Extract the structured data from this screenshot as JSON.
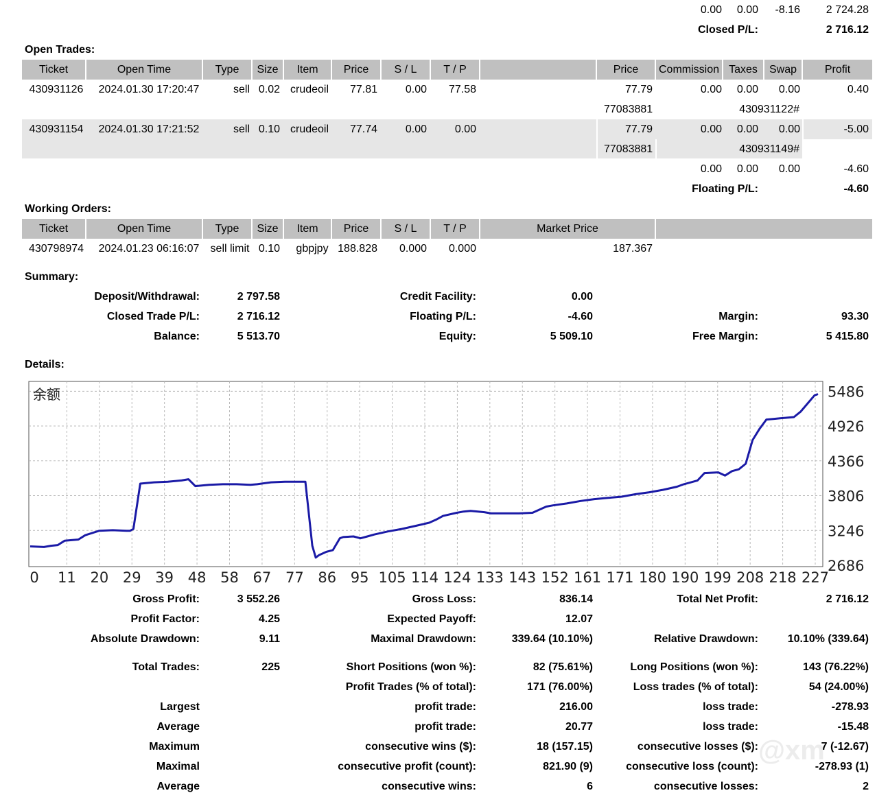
{
  "top_totals": {
    "row1": [
      "0.00",
      "0.00",
      "-8.16",
      "2 724.28"
    ],
    "closed_label": "Closed P/L:",
    "closed_value": "2 716.12"
  },
  "open_trades": {
    "title": "Open Trades:",
    "headers": [
      "Ticket",
      "Open Time",
      "Type",
      "Size",
      "Item",
      "Price",
      "S / L",
      "T / P",
      "",
      "Price",
      "Commission",
      "Taxes",
      "Swap",
      "Profit"
    ],
    "rows": [
      {
        "ticket": "430931126",
        "time": "2024.01.30 17:20:47",
        "type": "sell",
        "size": "0.02",
        "item": "crudeoil",
        "price": "77.81",
        "sl": "0.00",
        "tp": "77.58",
        "price2": "77.79",
        "commission": "0.00",
        "taxes": "0.00",
        "swap": "0.00",
        "profit": "0.40",
        "sub1": "77083881",
        "sub2": "430931122#"
      },
      {
        "ticket": "430931154",
        "time": "2024.01.30 17:21:52",
        "type": "sell",
        "size": "0.10",
        "item": "crudeoil",
        "price": "77.74",
        "sl": "0.00",
        "tp": "0.00",
        "price2": "77.79",
        "commission": "0.00",
        "taxes": "0.00",
        "swap": "0.00",
        "profit": "-5.00",
        "sub1": "77083881",
        "sub2": "430931149#"
      }
    ],
    "totals": [
      "0.00",
      "0.00",
      "0.00",
      "-4.60"
    ],
    "floating_label": "Floating P/L:",
    "floating_value": "-4.60"
  },
  "working_orders": {
    "title": "Working Orders:",
    "headers": [
      "Ticket",
      "Open Time",
      "Type",
      "Size",
      "Item",
      "Price",
      "S / L",
      "T / P",
      "Market Price"
    ],
    "rows": [
      {
        "ticket": "430798974",
        "time": "2024.01.23 06:16:07",
        "type": "sell limit",
        "size": "0.10",
        "item": "gbpjpy",
        "price": "188.828",
        "sl": "0.000",
        "tp": "0.000",
        "market": "187.367"
      }
    ]
  },
  "summary": {
    "title": "Summary:",
    "items": [
      {
        "label": "Deposit/Withdrawal:",
        "value": "2 797.58"
      },
      {
        "label": "Credit Facility:",
        "value": "0.00"
      },
      {
        "label": "Closed Trade P/L:",
        "value": "2 716.12"
      },
      {
        "label": "Floating P/L:",
        "value": "-4.60"
      },
      {
        "label": "Margin:",
        "value": "93.30"
      },
      {
        "label": "Balance:",
        "value": "5 513.70"
      },
      {
        "label": "Equity:",
        "value": "5 509.10"
      },
      {
        "label": "Free Margin:",
        "value": "5 415.80"
      }
    ]
  },
  "details_title": "Details:",
  "chart_data": {
    "type": "line",
    "title": "余额",
    "xlabel": "",
    "ylabel": "",
    "x_ticks": [
      "0",
      "11",
      "20",
      "29",
      "39",
      "48",
      "58",
      "67",
      "77",
      "86",
      "95",
      "105",
      "114",
      "124",
      "133",
      "143",
      "152",
      "161",
      "171",
      "180",
      "190",
      "199",
      "208",
      "218",
      "227"
    ],
    "y_ticks": [
      "5486",
      "4926",
      "4366",
      "3806",
      "3246",
      "2686"
    ],
    "ylim": [
      2686,
      5600
    ],
    "xlim": [
      0,
      230
    ],
    "grid": true,
    "line_color": "#1a1aa6",
    "x": [
      0,
      4,
      6,
      8,
      10,
      14,
      16,
      20,
      24,
      28,
      29,
      30,
      32,
      36,
      40,
      44,
      46,
      48,
      52,
      56,
      60,
      64,
      66,
      70,
      74,
      78,
      80,
      82,
      83,
      84,
      86,
      88,
      90,
      91,
      94,
      96,
      98,
      100,
      104,
      108,
      112,
      116,
      118,
      120,
      124,
      126,
      128,
      132,
      134,
      138,
      142,
      146,
      150,
      152,
      156,
      160,
      164,
      168,
      172,
      176,
      180,
      184,
      188,
      190,
      194,
      196,
      200,
      202,
      204,
      206,
      208,
      210,
      212,
      214,
      216,
      218,
      220,
      222,
      224,
      226,
      228,
      229
    ],
    "y": [
      2990,
      2980,
      3000,
      3010,
      3080,
      3100,
      3170,
      3240,
      3250,
      3240,
      3240,
      3270,
      4000,
      4020,
      4030,
      4050,
      4070,
      3960,
      3980,
      3990,
      3990,
      3980,
      3990,
      4020,
      4030,
      4030,
      4030,
      3000,
      2810,
      2850,
      2900,
      2930,
      3120,
      3140,
      3150,
      3120,
      3150,
      3180,
      3230,
      3270,
      3320,
      3370,
      3420,
      3480,
      3530,
      3550,
      3560,
      3540,
      3520,
      3520,
      3520,
      3530,
      3630,
      3650,
      3680,
      3720,
      3750,
      3770,
      3790,
      3830,
      3860,
      3900,
      3950,
      3990,
      4050,
      4170,
      4180,
      4130,
      4200,
      4230,
      4320,
      4700,
      4880,
      5030,
      5040,
      5050,
      5060,
      5070,
      5160,
      5290,
      5420,
      5440
    ]
  },
  "stats": {
    "rows": [
      [
        {
          "label": "Gross Profit:",
          "value": "3 552.26"
        },
        {
          "label": "Gross Loss:",
          "value": "836.14"
        },
        {
          "label": "Total Net Profit:",
          "value": "2 716.12"
        }
      ],
      [
        {
          "label": "Profit Factor:",
          "value": "4.25"
        },
        {
          "label": "Expected Payoff:",
          "value": "12.07"
        },
        {
          "label": "",
          "value": ""
        }
      ],
      [
        {
          "label": "Absolute Drawdown:",
          "value": "9.11"
        },
        {
          "label": "Maximal Drawdown:",
          "value": "339.64 (10.10%)"
        },
        {
          "label": "Relative Drawdown:",
          "value": "10.10% (339.64)"
        }
      ],
      [
        {
          "label": "Total Trades:",
          "value": "225"
        },
        {
          "label": "Short Positions (won %):",
          "value": "82 (75.61%)"
        },
        {
          "label": "Long Positions (won %):",
          "value": "143 (76.22%)"
        }
      ],
      [
        {
          "label": "",
          "value": ""
        },
        {
          "label": "Profit Trades (% of total):",
          "value": "171 (76.00%)"
        },
        {
          "label": "Loss trades (% of total):",
          "value": "54 (24.00%)"
        }
      ],
      [
        {
          "label": "Largest",
          "value": ""
        },
        {
          "label": "profit trade:",
          "value": "216.00"
        },
        {
          "label": "loss trade:",
          "value": "-278.93"
        }
      ],
      [
        {
          "label": "Average",
          "value": ""
        },
        {
          "label": "profit trade:",
          "value": "20.77"
        },
        {
          "label": "loss trade:",
          "value": "-15.48"
        }
      ],
      [
        {
          "label": "Maximum",
          "value": ""
        },
        {
          "label": "consecutive wins ($):",
          "value": "18 (157.15)"
        },
        {
          "label": "consecutive losses ($):",
          "value": "7 (-12.67)"
        }
      ],
      [
        {
          "label": "Maximal",
          "value": ""
        },
        {
          "label": "consecutive profit (count):",
          "value": "821.90 (9)"
        },
        {
          "label": "consecutive loss (count):",
          "value": "-278.93 (1)"
        }
      ],
      [
        {
          "label": "Average",
          "value": ""
        },
        {
          "label": "consecutive wins:",
          "value": "6"
        },
        {
          "label": "consecutive losses:",
          "value": "2"
        }
      ]
    ]
  },
  "watermark": "@xm"
}
